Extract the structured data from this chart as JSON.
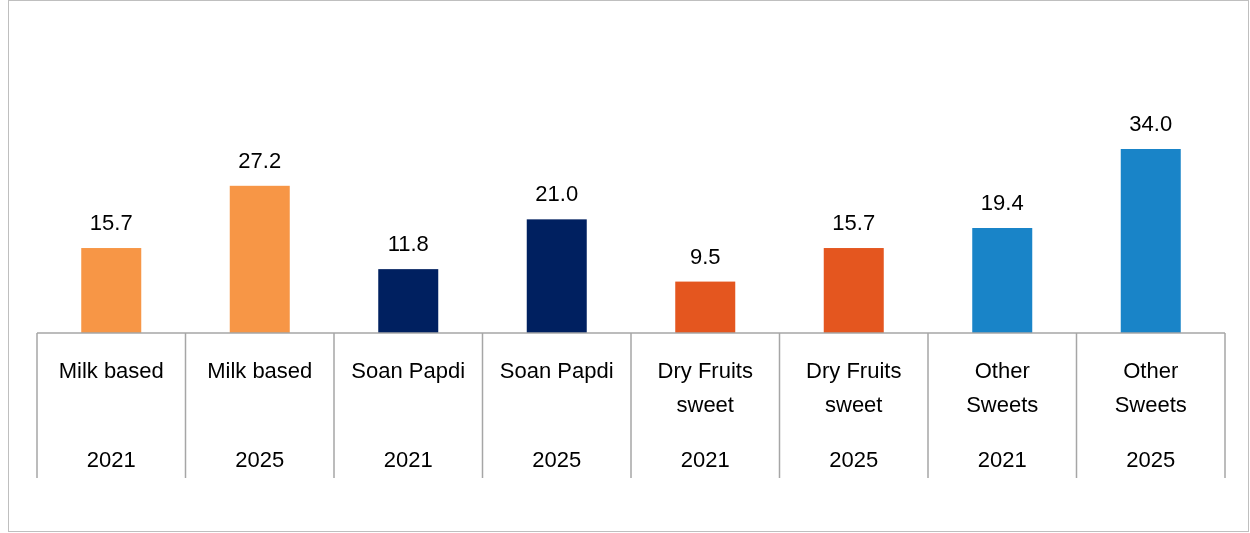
{
  "chart_data": {
    "type": "bar",
    "categories": [
      "Milk based\n2021",
      "Milk based\n2025",
      "Soan Papdi\n2021",
      "Soan Papdi\n2025",
      "Dry Fruits sweet\n2021",
      "Dry Fruits sweet\n2025",
      "Other Sweets\n2021",
      "Other Sweets\n2025"
    ],
    "values": [
      15.7,
      27.2,
      11.8,
      21.0,
      9.5,
      15.7,
      19.4,
      34.0
    ],
    "colors": [
      "#f79646",
      "#f79646",
      "#002060",
      "#002060",
      "#e4561f",
      "#e4561f",
      "#1984c8",
      "#1984c8"
    ],
    "value_labels": [
      "15.7",
      "27.2",
      "11.8",
      "21.0",
      "9.5",
      "15.7",
      "19.4",
      "34.0"
    ]
  }
}
